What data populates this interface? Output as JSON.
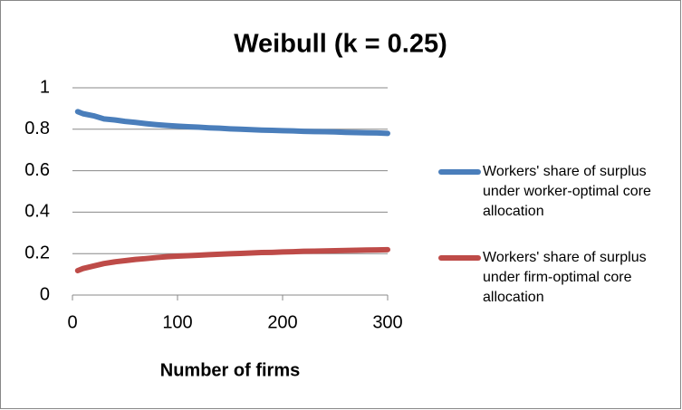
{
  "chart_data": {
    "type": "line",
    "title": "Weibull (k = 0.25)",
    "x_label": "Number of firms",
    "x": [
      5,
      10,
      20,
      30,
      40,
      50,
      60,
      70,
      80,
      90,
      100,
      110,
      120,
      130,
      140,
      150,
      160,
      170,
      180,
      190,
      200,
      210,
      220,
      230,
      240,
      250,
      260,
      270,
      280,
      290,
      300
    ],
    "series": [
      {
        "name": "Workers' share of surplus under worker-optimal core allocation",
        "color": "#4a7ebb",
        "values": [
          0.885,
          0.875,
          0.865,
          0.85,
          0.845,
          0.838,
          0.833,
          0.827,
          0.822,
          0.818,
          0.815,
          0.812,
          0.81,
          0.807,
          0.805,
          0.802,
          0.8,
          0.798,
          0.796,
          0.795,
          0.793,
          0.792,
          0.79,
          0.789,
          0.788,
          0.787,
          0.785,
          0.784,
          0.783,
          0.782,
          0.78
        ]
      },
      {
        "name": "Workers' share of surplus under firm-optimal core allocation",
        "color": "#be4b48",
        "values": [
          0.118,
          0.128,
          0.14,
          0.152,
          0.16,
          0.166,
          0.172,
          0.176,
          0.181,
          0.185,
          0.188,
          0.19,
          0.192,
          0.195,
          0.197,
          0.199,
          0.201,
          0.203,
          0.205,
          0.206,
          0.208,
          0.209,
          0.211,
          0.212,
          0.213,
          0.214,
          0.215,
          0.216,
          0.217,
          0.218,
          0.219
        ]
      }
    ],
    "xlim": [
      0,
      300
    ],
    "xticks": [
      0,
      100,
      200,
      300
    ],
    "ylim": [
      0,
      1
    ],
    "yticks": [
      0,
      0.2,
      0.4,
      0.6,
      0.8,
      1
    ],
    "grid": true,
    "legend": "right"
  }
}
